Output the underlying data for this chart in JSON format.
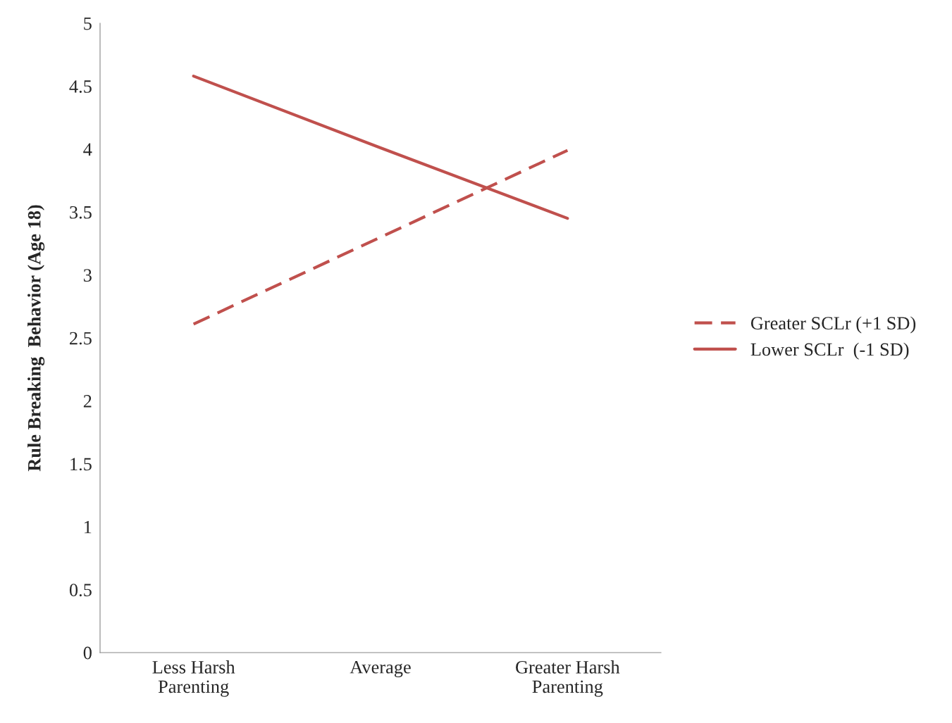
{
  "chart_data": {
    "type": "line",
    "ylabel": "Rule Breaking  Behavior (Age 18)",
    "categories": [
      "Less Harsh\nParenting",
      "Average",
      "Greater Harsh\nParenting"
    ],
    "series": [
      {
        "name": "Greater SCLr (+1 SD)",
        "color": "#c0504d",
        "values": [
          2.61,
          3.3,
          3.99
        ],
        "line_style": "dashed"
      },
      {
        "name": "Lower SCLr  (-1 SD)",
        "color": "#c0504d",
        "values": [
          4.58,
          4.01,
          3.45
        ],
        "line_style": "solid"
      }
    ],
    "ylim": [
      0,
      5
    ],
    "yticks": [
      0,
      0.5,
      1,
      1.5,
      2,
      2.5,
      3,
      3.5,
      4,
      4.5,
      5
    ],
    "grid": false,
    "legend": "right",
    "marker": "none"
  }
}
